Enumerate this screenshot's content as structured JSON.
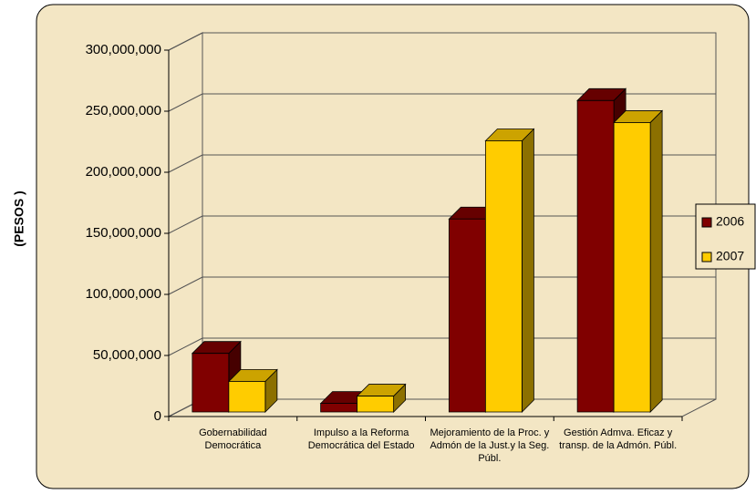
{
  "chart_data": {
    "type": "bar",
    "three_d": true,
    "y_label": "(PESOS )",
    "categories": [
      "Gobernabilidad Democrática",
      "Impulso a la Reforma Democrática del Estado",
      "Mejoramiento de la Proc. y Admón de la Just.y la Seg. Públ.",
      "Gestión Admva. Eficaz y transp. de la Admón. Públ."
    ],
    "series": [
      {
        "name": "2006",
        "color": "#800000",
        "values": [
          48000000,
          7000000,
          158000000,
          255000000
        ]
      },
      {
        "name": "2007",
        "color": "#ffcc00",
        "values": [
          25000000,
          13000000,
          222000000,
          237000000
        ]
      }
    ],
    "ylim": [
      0,
      300000000
    ],
    "yticks": [
      0,
      {
        "value": 50000000,
        "label": "50,000,000"
      },
      {
        "value": 100000000,
        "label": "100,000,000"
      },
      {
        "value": 150000000,
        "label": "150,000,000"
      },
      {
        "value": 200000000,
        "label": "200,000,000"
      },
      {
        "value": 250000000,
        "label": "250,000,000"
      },
      {
        "value": 300000000,
        "label": "300,000,000"
      }
    ],
    "grid": true,
    "legend": "right"
  }
}
